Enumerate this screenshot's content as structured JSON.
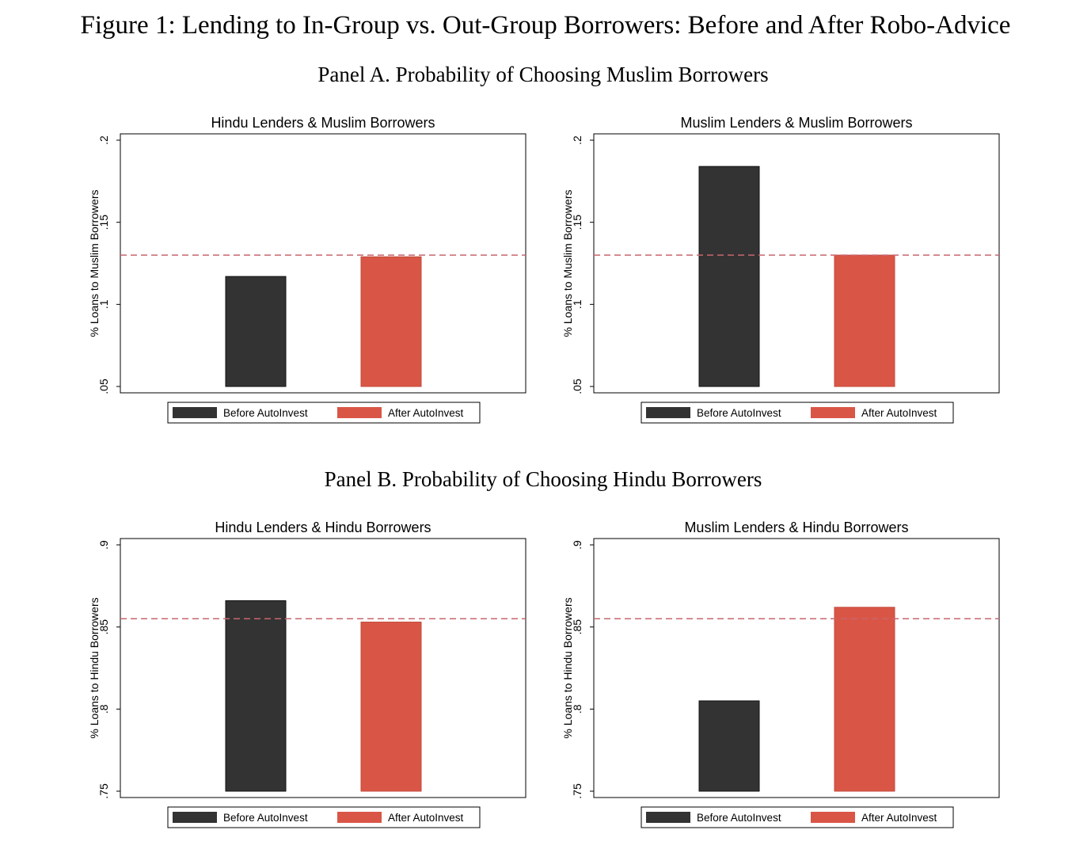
{
  "figure_title": "Figure 1: Lending to In-Group vs. Out-Group Borrowers: Before and After Robo-Advice",
  "panels": [
    {
      "title": "Panel A. Probability of Choosing Muslim Borrowers"
    },
    {
      "title": "Panel B. Probability of Choosing Hindu Borrowers"
    }
  ],
  "colors": {
    "before": "#333333",
    "after": "#d95646",
    "reference_line": "#c8666e"
  },
  "chart_data": [
    {
      "type": "bar",
      "title": "Hindu Lenders & Muslim Borrowers",
      "ylabel": "% Loans to Muslim Borrowers",
      "ylim": [
        0.05,
        0.2
      ],
      "yticks": [
        0.05,
        0.1,
        0.15,
        0.2
      ],
      "ytick_labels": [
        ".05",
        ".1",
        ".15",
        ".2"
      ],
      "series": [
        {
          "name": "Before AutoInvest",
          "values": [
            0.117
          ]
        },
        {
          "name": "After AutoInvest",
          "values": [
            0.129
          ]
        }
      ],
      "reference_line": 0.13,
      "legend_position": "bottom"
    },
    {
      "type": "bar",
      "title": "Muslim Lenders & Muslim Borrowers",
      "ylabel": "% Loans to Muslim Borrowers",
      "ylim": [
        0.05,
        0.2
      ],
      "yticks": [
        0.05,
        0.1,
        0.15,
        0.2
      ],
      "ytick_labels": [
        ".05",
        ".1",
        ".15",
        ".2"
      ],
      "series": [
        {
          "name": "Before AutoInvest",
          "values": [
            0.184
          ]
        },
        {
          "name": "After AutoInvest",
          "values": [
            0.13
          ]
        }
      ],
      "reference_line": 0.13,
      "legend_position": "bottom"
    },
    {
      "type": "bar",
      "title": "Hindu Lenders & Hindu Borrowers",
      "ylabel": "% Loans to Hindu Borrowers",
      "ylim": [
        0.75,
        0.9
      ],
      "yticks": [
        0.75,
        0.8,
        0.85,
        0.9
      ],
      "ytick_labels": [
        ".75",
        ".8",
        ".85",
        ".9"
      ],
      "series": [
        {
          "name": "Before AutoInvest",
          "values": [
            0.866
          ]
        },
        {
          "name": "After AutoInvest",
          "values": [
            0.853
          ]
        }
      ],
      "reference_line": 0.855,
      "legend_position": "bottom"
    },
    {
      "type": "bar",
      "title": "Muslim Lenders & Hindu Borrowers",
      "ylabel": "% Loans to Hindu Borrowers",
      "ylim": [
        0.75,
        0.9
      ],
      "yticks": [
        0.75,
        0.8,
        0.85,
        0.9
      ],
      "ytick_labels": [
        ".75",
        ".8",
        ".85",
        ".9"
      ],
      "series": [
        {
          "name": "Before AutoInvest",
          "values": [
            0.805
          ]
        },
        {
          "name": "After AutoInvest",
          "values": [
            0.862
          ]
        }
      ],
      "reference_line": 0.855,
      "legend_position": "bottom"
    }
  ]
}
